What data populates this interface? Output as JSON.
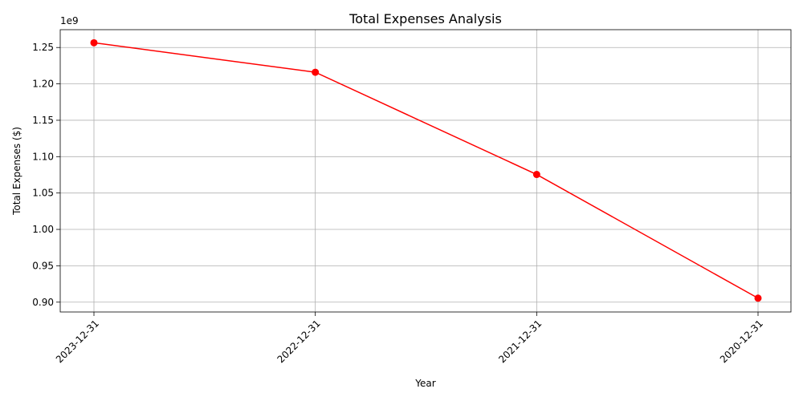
{
  "chart_data": {
    "type": "line",
    "title": "Total Expenses Analysis",
    "xlabel": "Year",
    "ylabel": "Total Expenses ($)",
    "y_offset_label": "1e9",
    "categories": [
      "2023-12-31",
      "2022-12-31",
      "2021-12-31",
      "2020-12-31"
    ],
    "series": [
      {
        "values": [
          1256500000,
          1216000000,
          1075500000,
          905500000
        ]
      }
    ],
    "ylim": [
      886500000,
      1274500000
    ],
    "y_ticks": [
      0.9,
      0.95,
      1.0,
      1.05,
      1.1,
      1.15,
      1.2,
      1.25
    ],
    "y_tick_labels": [
      "0.90",
      "0.95",
      "1.00",
      "1.05",
      "1.10",
      "1.15",
      "1.20",
      "1.25"
    ],
    "y_tick_scale": 1000000000,
    "grid": true,
    "line_color": "#ff0000",
    "marker": "circle",
    "x_tick_rotation": 45
  }
}
